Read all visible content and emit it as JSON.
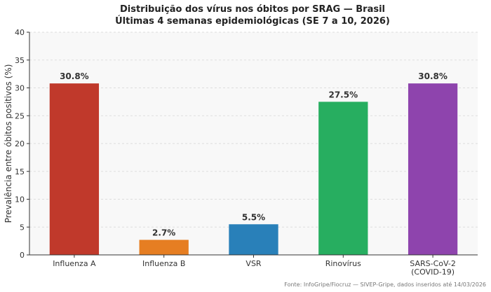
{
  "chart_data": {
    "type": "bar",
    "title": "Distribuição dos vírus nos óbitos por SRAG — Brasil",
    "subtitle": "Últimas 4 semanas epidemiológicas (SE 7 a 10, 2026)",
    "xlabel": "",
    "ylabel": "Prevalência entre óbitos positivos (%)",
    "ylim": [
      0,
      40
    ],
    "yticks": [
      0,
      5,
      10,
      15,
      20,
      25,
      30,
      35,
      40
    ],
    "grid": true,
    "categories": [
      [
        "Influenza A"
      ],
      [
        "Influenza B"
      ],
      [
        "VSR"
      ],
      [
        "Rinovírus"
      ],
      [
        "SARS-CoV-2",
        "(COVID-19)"
      ]
    ],
    "values": [
      30.8,
      2.7,
      5.5,
      27.5,
      30.8
    ],
    "value_labels": [
      "30.8%",
      "2.7%",
      "5.5%",
      "27.5%",
      "30.8%"
    ],
    "colors": [
      "#c0392b",
      "#e67e22",
      "#2980b9",
      "#27ae60",
      "#8e44ad"
    ],
    "source": "Fonte: InfoGripe/Fiocruz — SIVEP-Gripe, dados inseridos até 14/03/2026"
  },
  "style": {
    "plot_background": "#f8f8f8",
    "grid_color": "#dddddd",
    "axis_color": "#333333"
  }
}
